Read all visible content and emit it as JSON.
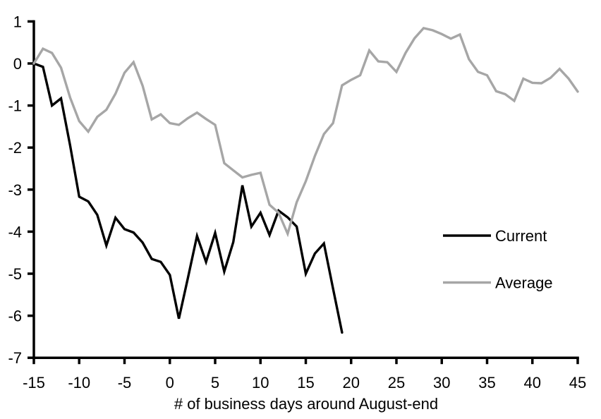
{
  "chart_data": {
    "type": "line",
    "title": "",
    "xlabel": "# of business days around August-end",
    "ylabel": "",
    "xlim": [
      -15,
      45
    ],
    "ylim": [
      -7,
      1
    ],
    "xticks": [
      -15,
      -10,
      -5,
      0,
      5,
      10,
      15,
      20,
      25,
      30,
      35,
      40,
      45
    ],
    "yticks": [
      1,
      0,
      -1,
      -2,
      -3,
      -4,
      -5,
      -6,
      -7
    ],
    "grid": false,
    "legend_position": "middle-right",
    "series": [
      {
        "name": "Current",
        "color": "#000000",
        "x": [
          -15,
          -14,
          -13,
          -12,
          -11,
          -10,
          -9,
          -8,
          -7,
          -6,
          -5,
          -4,
          -3,
          -2,
          -1,
          0,
          1,
          2,
          3,
          4,
          5,
          6,
          7,
          8,
          9,
          10,
          11,
          12,
          13,
          14,
          15,
          16,
          17,
          18,
          19
        ],
        "values": [
          0,
          -0.08,
          -1.0,
          -0.83,
          -1.95,
          -3.17,
          -3.28,
          -3.6,
          -4.33,
          -3.67,
          -3.94,
          -4.02,
          -4.26,
          -4.65,
          -4.72,
          -5.03,
          -6.07,
          -5.1,
          -4.1,
          -4.72,
          -4.03,
          -4.95,
          -4.25,
          -2.9,
          -3.88,
          -3.55,
          -4.08,
          -3.5,
          -3.66,
          -3.88,
          -5.0,
          -4.52,
          -4.28,
          -5.35,
          -6.4
        ]
      },
      {
        "name": "Average",
        "color": "#a6a6a6",
        "x": [
          -15,
          -14,
          -13,
          -12,
          -11,
          -10,
          -9,
          -8,
          -7,
          -6,
          -5,
          -4,
          -3,
          -2,
          -1,
          0,
          1,
          2,
          3,
          4,
          5,
          6,
          7,
          8,
          9,
          10,
          11,
          12,
          13,
          14,
          15,
          16,
          17,
          18,
          19,
          20,
          21,
          22,
          23,
          24,
          25,
          26,
          27,
          28,
          29,
          30,
          31,
          32,
          33,
          34,
          35,
          36,
          37,
          38,
          39,
          40,
          41,
          42,
          43,
          44,
          45
        ],
        "values": [
          0,
          0.35,
          0.25,
          -0.1,
          -0.81,
          -1.37,
          -1.62,
          -1.27,
          -1.1,
          -0.72,
          -0.22,
          0.03,
          -0.53,
          -1.33,
          -1.21,
          -1.42,
          -1.46,
          -1.3,
          -1.17,
          -1.32,
          -1.46,
          -2.37,
          -2.54,
          -2.71,
          -2.65,
          -2.6,
          -3.36,
          -3.55,
          -4.05,
          -3.3,
          -2.8,
          -2.2,
          -1.68,
          -1.42,
          -0.52,
          -0.39,
          -0.28,
          0.31,
          0.05,
          0.03,
          -0.2,
          0.25,
          0.6,
          0.84,
          0.79,
          0.7,
          0.59,
          0.69,
          0.1,
          -0.2,
          -0.28,
          -0.66,
          -0.73,
          -0.89,
          -0.36,
          -0.46,
          -0.47,
          -0.34,
          -0.13,
          -0.36,
          -0.67
        ]
      }
    ]
  },
  "axis_color": "#000000"
}
